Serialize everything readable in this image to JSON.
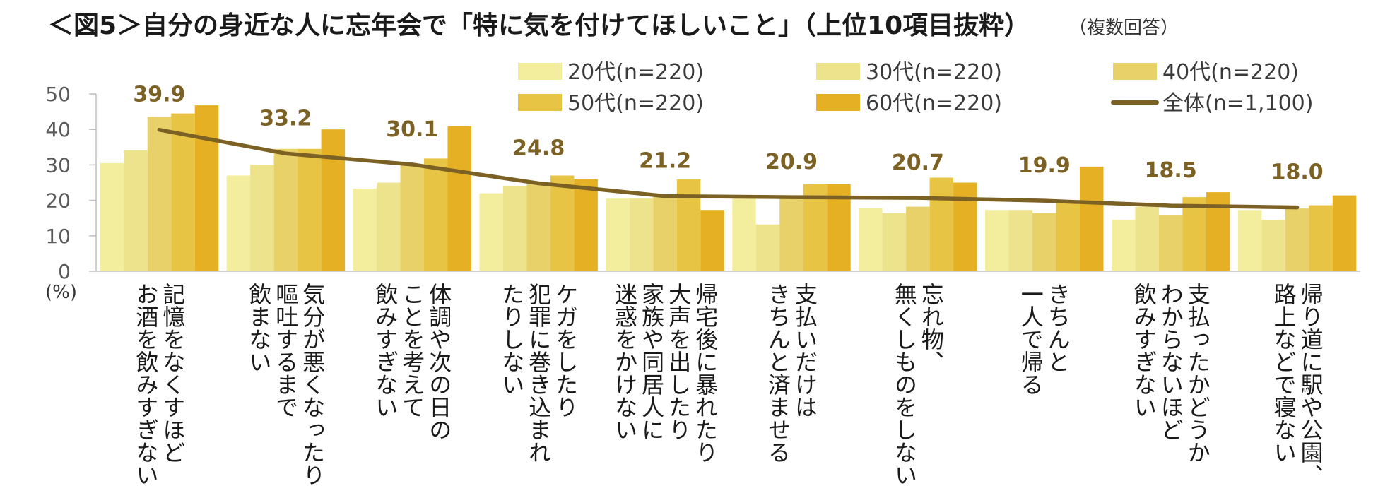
{
  "chart_data": {
    "type": "bar",
    "title": "＜図5＞自分の身近な人に忘年会で「特に気を付けてほしいこと」（上位10項目抜粋）",
    "subtitle": "（複数回答）",
    "unit_label": "(%)",
    "ylim": [
      0,
      50
    ],
    "yticks": [
      "0",
      "10",
      "20",
      "30",
      "40",
      "50"
    ],
    "categories": [
      [
        "記憶をなくすほど",
        "お酒を飲みすぎない"
      ],
      [
        "気分が悪くなったり",
        "嘔吐するまで",
        "飲まない"
      ],
      [
        "体調や次の日の",
        "ことを考えて",
        "飲みすぎない"
      ],
      [
        "ケガをしたり",
        "犯罪に巻き込まれ",
        "たりしない"
      ],
      [
        "帰宅後に暴れたり",
        "大声を出したり",
        "家族や同居人に",
        "迷惑をかけない"
      ],
      [
        "支払いだけは",
        "きちんと済ませる"
      ],
      [
        "忘れ物、",
        "無くしものをしない"
      ],
      [
        "きちんと",
        "一人で帰る"
      ],
      [
        "支払ったかどうか",
        "わからないほど",
        "飲みすぎない"
      ],
      [
        "帰り道に駅や公園、",
        "路上などで寝ない"
      ]
    ],
    "series": [
      {
        "name": "20代(n=220)",
        "color": "#f3ee9e",
        "values": [
          30.5,
          27.0,
          23.3,
          22.0,
          20.5,
          20.5,
          17.8,
          17.3,
          14.5,
          17.3
        ]
      },
      {
        "name": "30代(n=220)",
        "color": "#ede38d",
        "values": [
          34.1,
          30.0,
          25.0,
          24.0,
          20.5,
          13.2,
          16.4,
          17.3,
          18.2,
          14.5
        ]
      },
      {
        "name": "40代(n=220)",
        "color": "#e8d168",
        "values": [
          43.6,
          34.5,
          30.0,
          24.5,
          21.0,
          20.9,
          18.2,
          16.4,
          15.9,
          17.7
        ]
      },
      {
        "name": "50代(n=220)",
        "color": "#e7c444",
        "values": [
          44.5,
          34.5,
          31.8,
          27.0,
          25.9,
          24.5,
          26.4,
          19.5,
          20.9,
          18.6
        ]
      },
      {
        "name": "60代(n=220)",
        "color": "#e5b024",
        "values": [
          46.8,
          40.0,
          40.9,
          25.9,
          17.3,
          24.5,
          25.0,
          29.5,
          22.3,
          21.4
        ]
      }
    ],
    "line": {
      "name": "全体(n=1,100)",
      "color": "#7c6124",
      "values": [
        39.9,
        33.2,
        30.1,
        24.8,
        21.2,
        20.9,
        20.7,
        19.9,
        18.5,
        18.0
      ]
    },
    "data_labels": [
      "39.9",
      "33.2",
      "30.1",
      "24.8",
      "21.2",
      "20.9",
      "20.7",
      "19.9",
      "18.5",
      "18.0"
    ]
  }
}
